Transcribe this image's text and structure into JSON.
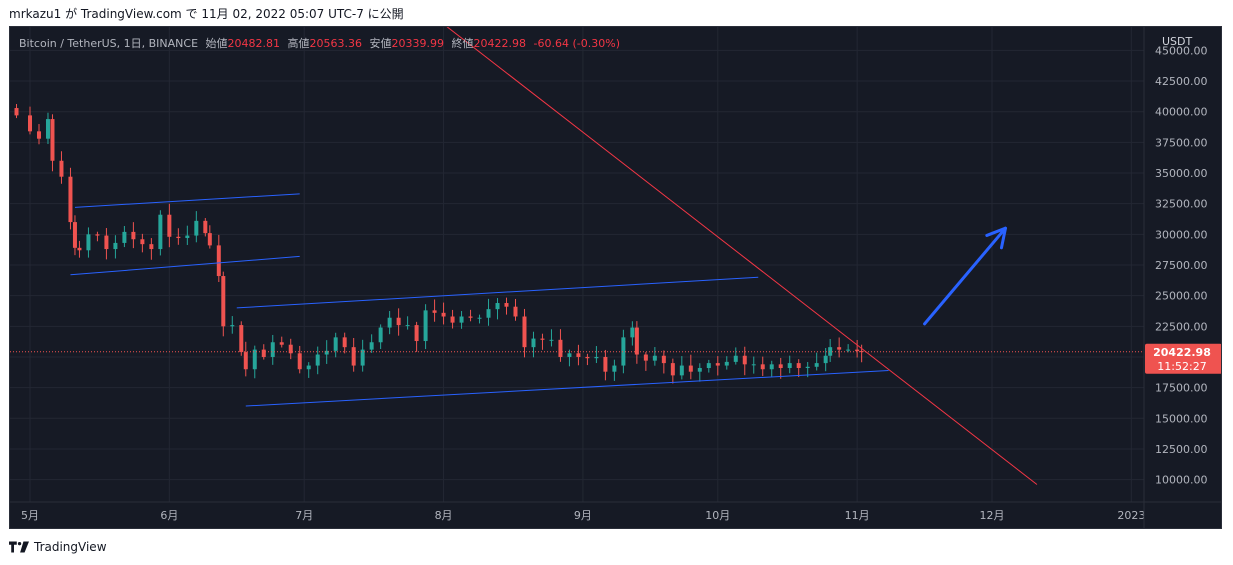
{
  "header": {
    "publish_line": "mrkazu1 が TradingView.com で 11月 02, 2022 05:07 UTC-7 に公開"
  },
  "legend": {
    "symbol": "Bitcoin / TetherUS, 1日, BINANCE",
    "open_label": "始値",
    "open": "20482.81",
    "high_label": "高値",
    "high": "20563.36",
    "low_label": "安値",
    "low": "20339.99",
    "close_label": "終値",
    "close": "20422.98",
    "change": "-60.64 (-0.30%)"
  },
  "price_scale": {
    "currency": "USDT",
    "last_price": "20422.98",
    "countdown": "11:52:27"
  },
  "footer": {
    "brand": "TradingView"
  },
  "colors": {
    "background": "#161a25",
    "up": "#26a69a",
    "down": "#ef5350",
    "channel": "#2962ff",
    "trendline": "#f23645",
    "arrow": "#2962ff",
    "grid": "#232733",
    "axis_text": "#b2b5be"
  },
  "chart_data": {
    "type": "candlestick",
    "y_ticks": [
      "10000.00",
      "12500.00",
      "15000.00",
      "17500.00",
      "20000.00",
      "22500.00",
      "25000.00",
      "27500.00",
      "30000.00",
      "32500.00",
      "35000.00",
      "37500.00",
      "40000.00",
      "42500.00",
      "45000.00"
    ],
    "x_ticks": [
      "5月",
      "6月",
      "7月",
      "8月",
      "9月",
      "10月",
      "11月",
      "12月",
      "2023"
    ],
    "ylim": [
      8500,
      46500
    ],
    "grid": true,
    "series": [
      {
        "type": "candles",
        "points": [
          {
            "date": "2022-04-28",
            "c": 39700
          },
          {
            "date": "2022-05-01",
            "c": 38400
          },
          {
            "date": "2022-05-03",
            "c": 37800
          },
          {
            "date": "2022-05-05",
            "c": 39400
          },
          {
            "date": "2022-05-06",
            "c": 36000
          },
          {
            "date": "2022-05-08",
            "c": 34700
          },
          {
            "date": "2022-05-10",
            "c": 31000
          },
          {
            "date": "2022-05-11",
            "c": 28900
          },
          {
            "date": "2022-05-12",
            "c": 28700
          },
          {
            "date": "2022-05-14",
            "c": 30000
          },
          {
            "date": "2022-05-16",
            "c": 29900
          },
          {
            "date": "2022-05-18",
            "c": 28800
          },
          {
            "date": "2022-05-20",
            "c": 29300
          },
          {
            "date": "2022-05-22",
            "c": 30200
          },
          {
            "date": "2022-05-24",
            "c": 29600
          },
          {
            "date": "2022-05-26",
            "c": 29200
          },
          {
            "date": "2022-05-28",
            "c": 28800
          },
          {
            "date": "2022-05-30",
            "c": 31600
          },
          {
            "date": "2022-06-01",
            "c": 29800
          },
          {
            "date": "2022-06-03",
            "c": 29700
          },
          {
            "date": "2022-06-05",
            "c": 29900
          },
          {
            "date": "2022-06-07",
            "c": 31100
          },
          {
            "date": "2022-06-09",
            "c": 30100
          },
          {
            "date": "2022-06-10",
            "c": 29100
          },
          {
            "date": "2022-06-12",
            "c": 26600
          },
          {
            "date": "2022-06-13",
            "c": 22500
          },
          {
            "date": "2022-06-15",
            "c": 22600
          },
          {
            "date": "2022-06-17",
            "c": 20400
          },
          {
            "date": "2022-06-18",
            "c": 19000
          },
          {
            "date": "2022-06-20",
            "c": 20600
          },
          {
            "date": "2022-06-22",
            "c": 20000
          },
          {
            "date": "2022-06-24",
            "c": 21200
          },
          {
            "date": "2022-06-26",
            "c": 21000
          },
          {
            "date": "2022-06-28",
            "c": 20300
          },
          {
            "date": "2022-06-30",
            "c": 19000
          },
          {
            "date": "2022-07-02",
            "c": 19300
          },
          {
            "date": "2022-07-04",
            "c": 20200
          },
          {
            "date": "2022-07-06",
            "c": 20500
          },
          {
            "date": "2022-07-08",
            "c": 21600
          },
          {
            "date": "2022-07-10",
            "c": 20800
          },
          {
            "date": "2022-07-12",
            "c": 19300
          },
          {
            "date": "2022-07-14",
            "c": 20600
          },
          {
            "date": "2022-07-16",
            "c": 21200
          },
          {
            "date": "2022-07-18",
            "c": 22400
          },
          {
            "date": "2022-07-20",
            "c": 23200
          },
          {
            "date": "2022-07-22",
            "c": 22600
          },
          {
            "date": "2022-07-24",
            "c": 22600
          },
          {
            "date": "2022-07-26",
            "c": 21300
          },
          {
            "date": "2022-07-28",
            "c": 23800
          },
          {
            "date": "2022-07-30",
            "c": 23600
          },
          {
            "date": "2022-08-01",
            "c": 23300
          },
          {
            "date": "2022-08-03",
            "c": 22800
          },
          {
            "date": "2022-08-05",
            "c": 23300
          },
          {
            "date": "2022-08-07",
            "c": 23200
          },
          {
            "date": "2022-08-09",
            "c": 23200
          },
          {
            "date": "2022-08-11",
            "c": 23900
          },
          {
            "date": "2022-08-13",
            "c": 24400
          },
          {
            "date": "2022-08-15",
            "c": 24100
          },
          {
            "date": "2022-08-17",
            "c": 23300
          },
          {
            "date": "2022-08-19",
            "c": 20800
          },
          {
            "date": "2022-08-21",
            "c": 21500
          },
          {
            "date": "2022-08-23",
            "c": 21400
          },
          {
            "date": "2022-08-25",
            "c": 21400
          },
          {
            "date": "2022-08-27",
            "c": 20000
          },
          {
            "date": "2022-08-29",
            "c": 20300
          },
          {
            "date": "2022-08-31",
            "c": 20000
          },
          {
            "date": "2022-09-02",
            "c": 19900
          },
          {
            "date": "2022-09-04",
            "c": 20000
          },
          {
            "date": "2022-09-06",
            "c": 18800
          },
          {
            "date": "2022-09-08",
            "c": 19300
          },
          {
            "date": "2022-09-10",
            "c": 21600
          },
          {
            "date": "2022-09-12",
            "c": 22400
          },
          {
            "date": "2022-09-13",
            "c": 20200
          },
          {
            "date": "2022-09-15",
            "c": 19700
          },
          {
            "date": "2022-09-17",
            "c": 20100
          },
          {
            "date": "2022-09-19",
            "c": 19500
          },
          {
            "date": "2022-09-21",
            "c": 18500
          },
          {
            "date": "2022-09-23",
            "c": 19300
          },
          {
            "date": "2022-09-25",
            "c": 18800
          },
          {
            "date": "2022-09-27",
            "c": 19100
          },
          {
            "date": "2022-09-29",
            "c": 19500
          },
          {
            "date": "2022-10-01",
            "c": 19300
          },
          {
            "date": "2022-10-03",
            "c": 19600
          },
          {
            "date": "2022-10-05",
            "c": 20100
          },
          {
            "date": "2022-10-07",
            "c": 19400
          },
          {
            "date": "2022-10-09",
            "c": 19400
          },
          {
            "date": "2022-10-11",
            "c": 19000
          },
          {
            "date": "2022-10-13",
            "c": 19400
          },
          {
            "date": "2022-10-15",
            "c": 19100
          },
          {
            "date": "2022-10-17",
            "c": 19500
          },
          {
            "date": "2022-10-19",
            "c": 19100
          },
          {
            "date": "2022-10-21",
            "c": 19200
          },
          {
            "date": "2022-10-23",
            "c": 19500
          },
          {
            "date": "2022-10-25",
            "c": 20100
          },
          {
            "date": "2022-10-26",
            "c": 20800
          },
          {
            "date": "2022-10-28",
            "c": 20600
          },
          {
            "date": "2022-10-30",
            "c": 20600
          },
          {
            "date": "2022-11-01",
            "c": 20480
          },
          {
            "date": "2022-11-02",
            "c": 20423
          }
        ]
      },
      {
        "type": "line",
        "name": "channel-1-top",
        "points": [
          {
            "date": "2022-05-11",
            "y": 32200
          },
          {
            "date": "2022-06-30",
            "y": 33300
          }
        ]
      },
      {
        "type": "line",
        "name": "channel-1-bottom",
        "points": [
          {
            "date": "2022-05-10",
            "y": 26700
          },
          {
            "date": "2022-06-30",
            "y": 28200
          }
        ]
      },
      {
        "type": "line",
        "name": "channel-2-top",
        "points": [
          {
            "date": "2022-06-16",
            "y": 24000
          },
          {
            "date": "2022-10-10",
            "y": 26500
          }
        ]
      },
      {
        "type": "line",
        "name": "channel-2-bottom",
        "points": [
          {
            "date": "2022-06-18",
            "y": 16000
          },
          {
            "date": "2022-11-08",
            "y": 18900
          }
        ]
      },
      {
        "type": "line",
        "name": "downtrend",
        "points": [
          {
            "date": "2022-07-29",
            "y": 48000
          },
          {
            "date": "2022-12-11",
            "y": 9600
          }
        ]
      },
      {
        "type": "arrow",
        "name": "projection",
        "points": [
          {
            "date": "2022-11-16",
            "y": 22700
          },
          {
            "date": "2022-12-04",
            "y": 30500
          }
        ]
      }
    ]
  }
}
